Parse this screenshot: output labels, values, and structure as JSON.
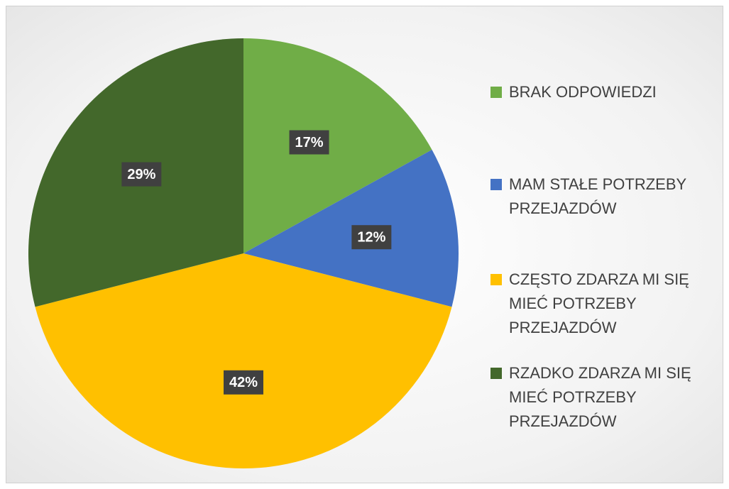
{
  "chart_data": {
    "type": "pie",
    "categories": [
      "BRAK ODPOWIEDZI",
      "MAM STAŁE POTRZEBY PRZEJAZDÓW",
      "CZĘSTO ZDARZA MI SIĘ MIEĆ POTRZEBY PRZEJAZDÓW",
      "RZADKO ZDARZA MI SIĘ MIEĆ POTRZEBY PRZEJAZDÓW"
    ],
    "values": [
      17,
      12,
      42,
      29
    ],
    "value_labels": [
      "17%",
      "12%",
      "42%",
      "29%"
    ],
    "colors": [
      "#70ad47",
      "#4472c4",
      "#ffc000",
      "#43682b"
    ],
    "legend": "right"
  }
}
